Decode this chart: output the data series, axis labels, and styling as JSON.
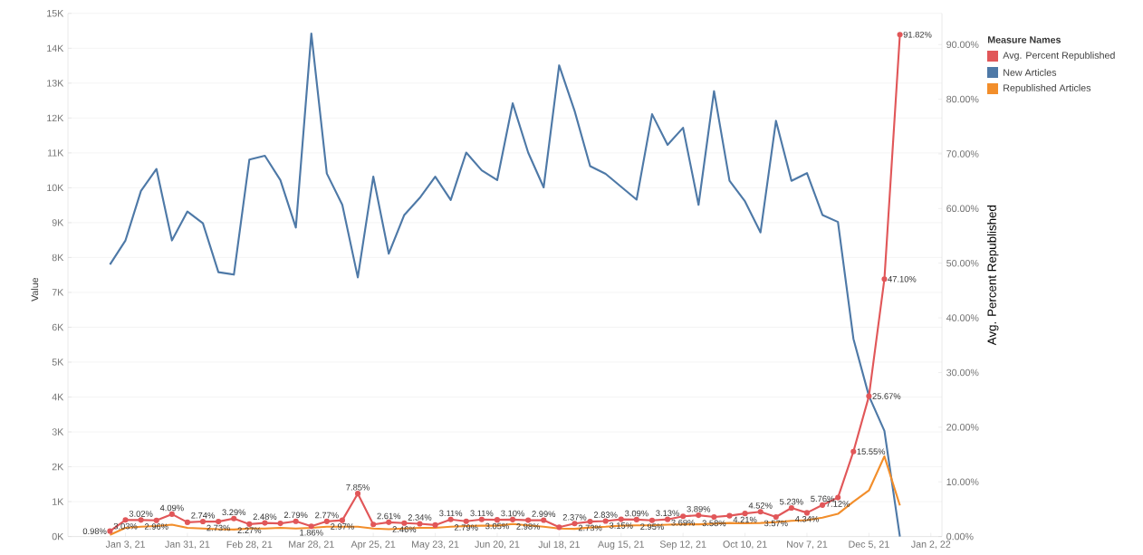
{
  "chart_data": {
    "type": "line",
    "x": [
      "2020-12-27",
      "2021-01-03",
      "2021-01-10",
      "2021-01-17",
      "2021-01-24",
      "2021-01-31",
      "2021-02-07",
      "2021-02-14",
      "2021-02-21",
      "2021-02-28",
      "2021-03-07",
      "2021-03-14",
      "2021-03-21",
      "2021-03-28",
      "2021-04-04",
      "2021-04-11",
      "2021-04-18",
      "2021-04-25",
      "2021-05-02",
      "2021-05-09",
      "2021-05-16",
      "2021-05-23",
      "2021-05-30",
      "2021-06-06",
      "2021-06-13",
      "2021-06-20",
      "2021-06-27",
      "2021-07-04",
      "2021-07-11",
      "2021-07-18",
      "2021-07-25",
      "2021-08-01",
      "2021-08-08",
      "2021-08-15",
      "2021-08-22",
      "2021-08-29",
      "2021-09-05",
      "2021-09-12",
      "2021-09-19",
      "2021-09-26",
      "2021-10-03",
      "2021-10-10",
      "2021-10-17",
      "2021-10-24",
      "2021-10-31",
      "2021-11-07",
      "2021-11-14",
      "2021-11-21",
      "2021-11-28",
      "2021-12-05",
      "2021-12-12",
      "2021-12-19"
    ],
    "xlim": [
      "2020-12-08",
      "2022-01-07"
    ],
    "xticks": [
      {
        "value": "2021-01-03",
        "label": "Jan 3, 21"
      },
      {
        "value": "2021-01-31",
        "label": "Jan 31, 21"
      },
      {
        "value": "2021-02-28",
        "label": "Feb 28, 21"
      },
      {
        "value": "2021-03-28",
        "label": "Mar 28, 21"
      },
      {
        "value": "2021-04-25",
        "label": "Apr 25, 21"
      },
      {
        "value": "2021-05-23",
        "label": "May 23, 21"
      },
      {
        "value": "2021-06-20",
        "label": "Jun 20, 21"
      },
      {
        "value": "2021-07-18",
        "label": "Jul 18, 21"
      },
      {
        "value": "2021-08-15",
        "label": "Aug 15, 21"
      },
      {
        "value": "2021-09-12",
        "label": "Sep 12, 21"
      },
      {
        "value": "2021-10-10",
        "label": "Oct 10, 21"
      },
      {
        "value": "2021-11-07",
        "label": "Nov 7, 21"
      },
      {
        "value": "2021-12-05",
        "label": "Dec 5, 21"
      },
      {
        "value": "2022-01-02",
        "label": "Jan 2, 22"
      }
    ],
    "ylim": [
      0,
      15000
    ],
    "yticks": [
      {
        "value": 0,
        "label": "0K"
      },
      {
        "value": 1000,
        "label": "1K"
      },
      {
        "value": 2000,
        "label": "2K"
      },
      {
        "value": 3000,
        "label": "3K"
      },
      {
        "value": 4000,
        "label": "4K"
      },
      {
        "value": 5000,
        "label": "5K"
      },
      {
        "value": 6000,
        "label": "6K"
      },
      {
        "value": 7000,
        "label": "7K"
      },
      {
        "value": 8000,
        "label": "8K"
      },
      {
        "value": 9000,
        "label": "9K"
      },
      {
        "value": 10000,
        "label": "10K"
      },
      {
        "value": 11000,
        "label": "11K"
      },
      {
        "value": 12000,
        "label": "12K"
      },
      {
        "value": 13000,
        "label": "13K"
      },
      {
        "value": 14000,
        "label": "14K"
      },
      {
        "value": 15000,
        "label": "15K"
      }
    ],
    "y2lim": [
      0,
      95.7
    ],
    "y2ticks": [
      {
        "value": 0,
        "label": "0.00%"
      },
      {
        "value": 10,
        "label": "10.00%"
      },
      {
        "value": 20,
        "label": "20.00%"
      },
      {
        "value": 30,
        "label": "30.00%"
      },
      {
        "value": 40,
        "label": "40.00%"
      },
      {
        "value": 50,
        "label": "50.00%"
      },
      {
        "value": 60,
        "label": "60.00%"
      },
      {
        "value": 70,
        "label": "70.00%"
      },
      {
        "value": 80,
        "label": "80.00%"
      },
      {
        "value": 90,
        "label": "90.00%"
      }
    ],
    "ylabel": "Value",
    "y2label": "Avg. Percent Republished",
    "legend_title": "Measure Names",
    "legend": "top right",
    "grid": "y",
    "series": [
      {
        "name": "Avg. Percent Republished",
        "color": "#e15759",
        "axis": "y2",
        "marker": "circle",
        "line_style": "solid",
        "values": [
          0.98,
          3.03,
          3.02,
          2.96,
          4.09,
          2.6,
          2.74,
          2.73,
          3.29,
          2.27,
          2.48,
          2.4,
          2.79,
          1.86,
          2.77,
          2.97,
          7.85,
          2.2,
          2.61,
          2.46,
          2.34,
          2.1,
          3.11,
          2.79,
          3.11,
          3.05,
          3.1,
          2.98,
          2.99,
          1.7,
          2.37,
          2.73,
          2.83,
          3.15,
          3.09,
          2.95,
          3.13,
          3.69,
          3.89,
          3.58,
          3.8,
          4.21,
          4.52,
          3.57,
          5.23,
          4.34,
          5.76,
          7.12,
          15.55,
          25.67,
          47.1,
          91.82
        ],
        "value_labels": [
          "0.98%",
          "3.03%",
          "3.02%",
          "2.96%",
          "4.09%",
          null,
          "2.74%",
          "2.73%",
          "3.29%",
          "2.27%",
          "2.48%",
          null,
          "2.79%",
          "1.86%",
          "2.77%",
          "2.97%",
          "7.85%",
          null,
          "2.61%",
          "2.46%",
          "2.34%",
          null,
          "3.11%",
          "2.79%",
          "3.11%",
          "3.05%",
          "3.10%",
          "2.98%",
          "2.99%",
          null,
          "2.37%",
          "2.73%",
          "2.83%",
          "3.15%",
          "3.09%",
          "2.95%",
          "3.13%",
          "3.69%",
          "3.89%",
          "3.58%",
          null,
          "4.21%",
          "4.52%",
          "3.57%",
          "5.23%",
          "4.34%",
          "5.76%",
          "7.12%",
          "15.55%",
          "25.67%",
          "47.10%",
          "91.82%"
        ]
      },
      {
        "name": "New Articles",
        "color": "#4e79a7",
        "axis": "y",
        "marker": "none",
        "line_style": "solid",
        "values": [
          7800,
          8490,
          9910,
          10540,
          8490,
          9320,
          8980,
          7580,
          7510,
          10810,
          10920,
          10220,
          8860,
          14420,
          10410,
          9510,
          7430,
          10320,
          8110,
          9220,
          9710,
          10320,
          9650,
          11010,
          10500,
          10220,
          12420,
          11010,
          10010,
          13510,
          12200,
          10620,
          10400,
          10030,
          9660,
          12110,
          11230,
          11720,
          9510,
          12770,
          10200,
          9610,
          8720,
          11920,
          10200,
          10420,
          9220,
          9020,
          5670,
          4030,
          3030,
          0
        ]
      },
      {
        "name": "Republished Articles",
        "color": "#f28e2b",
        "axis": "y",
        "marker": "none",
        "line_style": "solid",
        "values": [
          50,
          250,
          280,
          300,
          340,
          250,
          230,
          210,
          200,
          230,
          230,
          250,
          230,
          250,
          280,
          280,
          280,
          230,
          210,
          230,
          250,
          250,
          280,
          300,
          310,
          310,
          360,
          320,
          280,
          230,
          220,
          260,
          280,
          310,
          320,
          320,
          340,
          350,
          350,
          370,
          390,
          380,
          390,
          410,
          450,
          470,
          540,
          650,
          1000,
          1320,
          2300,
          890
        ]
      }
    ]
  }
}
